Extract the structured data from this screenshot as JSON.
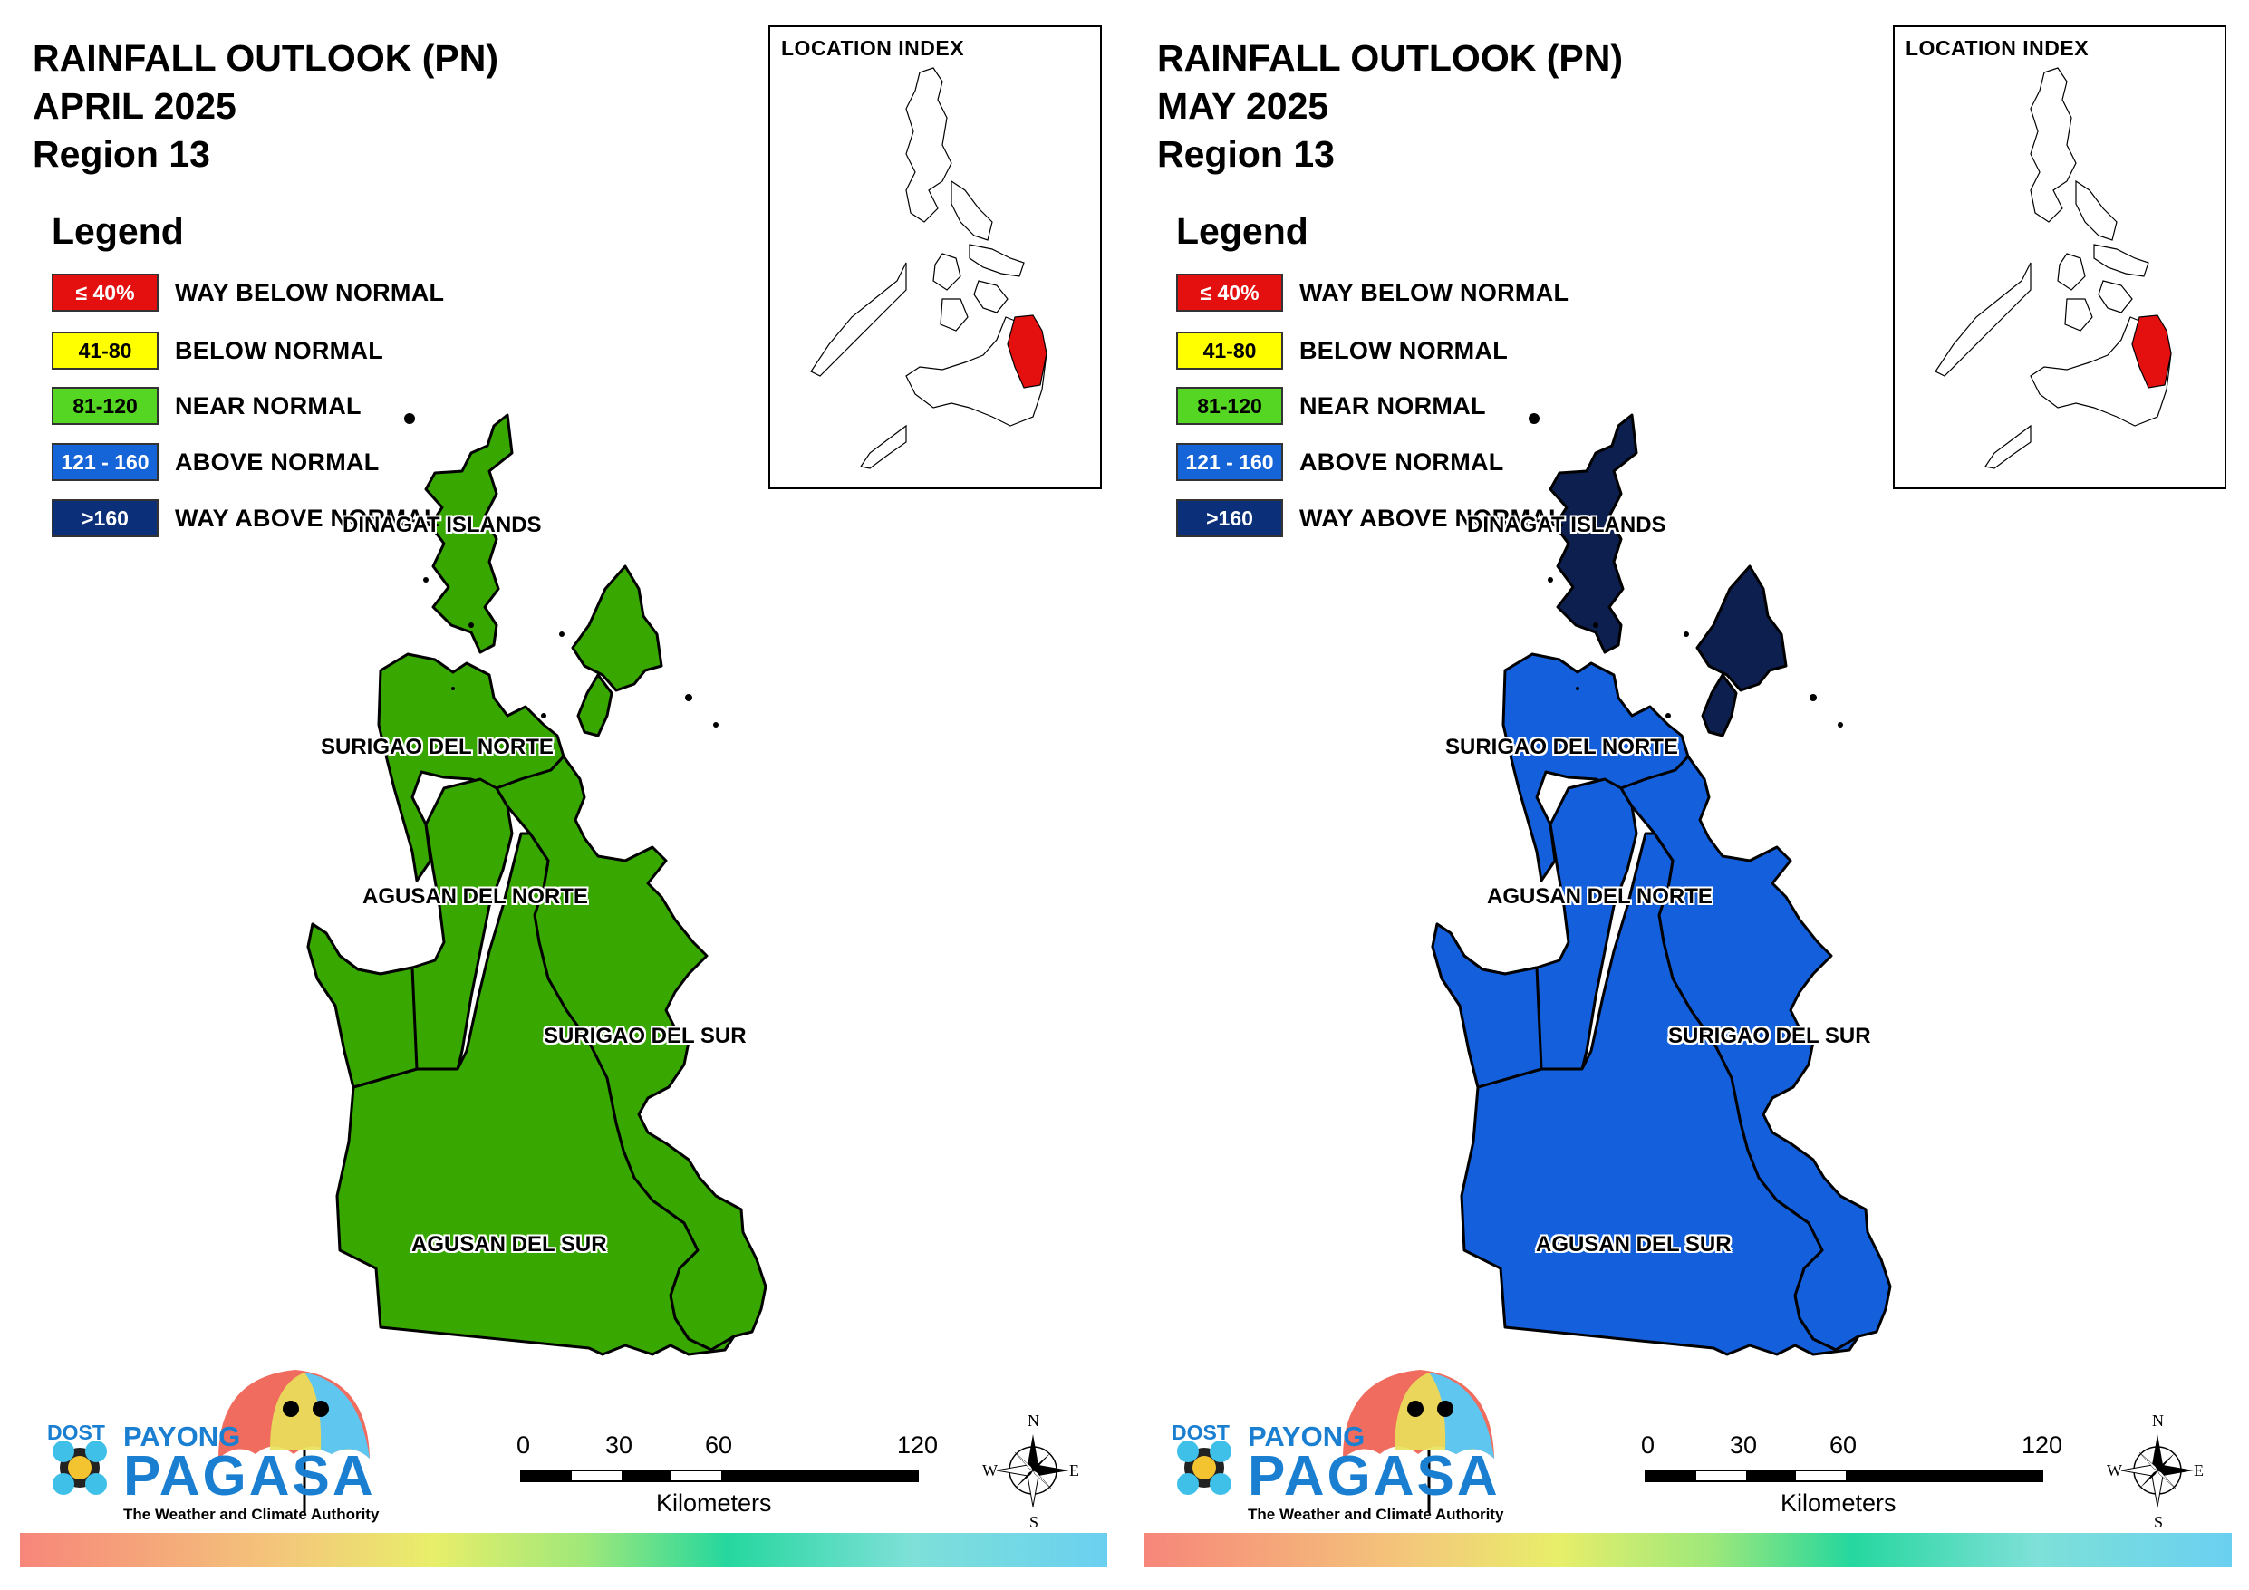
{
  "colors": {
    "way_below_normal": "#e3100f",
    "below_normal": "#ffff00",
    "near_normal": "#55d622",
    "above_normal": "#1565d8",
    "way_above_normal": "#0b2f78",
    "province_green": "#38a800",
    "province_blue": "#1460dc",
    "province_navy": "#0c1f4f",
    "inset_highlight": "#e3100f",
    "brand_blue": "#1a7fd1"
  },
  "legend": {
    "title": "Legend",
    "items": [
      {
        "range": "≤ 40%",
        "label": "WAY BELOW NORMAL",
        "color": "#e3100f",
        "text_color": "#ffffff"
      },
      {
        "range": "41-80",
        "label": "BELOW NORMAL",
        "color": "#ffff00",
        "text_color": "#000000"
      },
      {
        "range": "81-120",
        "label": "NEAR NORMAL",
        "color": "#55d622",
        "text_color": "#000000"
      },
      {
        "range": "121 - 160",
        "label": "ABOVE NORMAL",
        "color": "#1565d8",
        "text_color": "#ffffff"
      },
      {
        "range": ">160",
        "label": "WAY ABOVE NORMAL",
        "color": "#0b2f78",
        "text_color": "#ffffff"
      }
    ]
  },
  "provinces": {
    "dinagat": "DINAGAT ISLANDS",
    "surigao_norte": "SURIGAO DEL NORTE",
    "agusan_norte": "AGUSAN DEL NORTE",
    "surigao_sur": "SURIGAO DEL SUR",
    "agusan_sur": "AGUSAN DEL SUR"
  },
  "panels": [
    {
      "title_line1": "RAINFALL OUTLOOK (PN)",
      "title_line2": "APRIL 2025",
      "title_line3": "Region 13",
      "categories": {
        "dinagat": "NEAR NORMAL",
        "surigao_norte": "NEAR NORMAL",
        "agusan_norte": "NEAR NORMAL",
        "surigao_sur": "NEAR NORMAL",
        "agusan_sur": "NEAR NORMAL"
      }
    },
    {
      "title_line1": "RAINFALL OUTLOOK (PN)",
      "title_line2": "MAY 2025",
      "title_line3": "Region 13",
      "categories": {
        "dinagat": "WAY ABOVE NORMAL",
        "surigao_norte": "ABOVE NORMAL",
        "agusan_norte": "ABOVE NORMAL",
        "surigao_sur": "ABOVE NORMAL",
        "agusan_sur": "ABOVE NORMAL"
      }
    }
  ],
  "inset": {
    "title": "LOCATION INDEX"
  },
  "scale": {
    "ticks": [
      "0",
      "30",
      "60",
      "120"
    ],
    "unit": "Kilometers"
  },
  "compass": {
    "n": "N",
    "s": "S",
    "e": "E",
    "w": "W"
  },
  "logo": {
    "dost": "DOST",
    "payong": "PAYONG",
    "pagasa": "PAGASA",
    "tagline": "The Weather and Climate Authority"
  }
}
